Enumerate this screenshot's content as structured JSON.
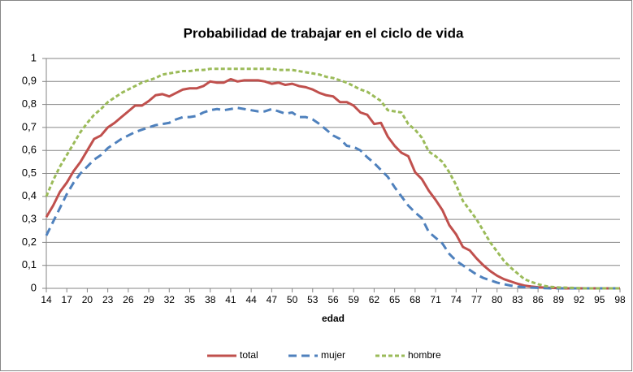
{
  "chart_data": {
    "type": "line",
    "title": "Probabilidad de trabajar en el ciclo de vida",
    "x_label": "edad",
    "x": [
      14,
      15,
      16,
      17,
      18,
      19,
      20,
      21,
      22,
      23,
      24,
      25,
      26,
      27,
      28,
      29,
      30,
      31,
      32,
      33,
      34,
      35,
      36,
      37,
      38,
      39,
      40,
      41,
      42,
      43,
      44,
      45,
      46,
      47,
      48,
      49,
      50,
      51,
      52,
      53,
      54,
      55,
      56,
      57,
      58,
      59,
      60,
      61,
      62,
      63,
      64,
      65,
      66,
      67,
      68,
      69,
      70,
      71,
      72,
      73,
      74,
      75,
      76,
      77,
      78,
      79,
      80,
      81,
      82,
      83,
      84,
      85,
      86,
      87,
      88,
      89,
      90,
      91,
      92,
      93,
      94,
      95,
      96,
      97,
      98
    ],
    "series": [
      {
        "name": "total",
        "color": "#c0504d",
        "dash": "solid",
        "values": [
          0.31,
          0.36,
          0.42,
          0.46,
          0.51,
          0.55,
          0.6,
          0.65,
          0.665,
          0.7,
          0.72,
          0.745,
          0.77,
          0.795,
          0.795,
          0.815,
          0.84,
          0.845,
          0.835,
          0.85,
          0.865,
          0.87,
          0.87,
          0.88,
          0.9,
          0.895,
          0.895,
          0.91,
          0.9,
          0.905,
          0.905,
          0.905,
          0.9,
          0.89,
          0.895,
          0.885,
          0.89,
          0.88,
          0.875,
          0.865,
          0.85,
          0.84,
          0.835,
          0.81,
          0.81,
          0.795,
          0.765,
          0.755,
          0.715,
          0.72,
          0.66,
          0.62,
          0.59,
          0.575,
          0.505,
          0.475,
          0.425,
          0.385,
          0.34,
          0.275,
          0.235,
          0.18,
          0.165,
          0.13,
          0.1,
          0.075,
          0.055,
          0.04,
          0.03,
          0.02,
          0.012,
          0.008,
          0.005,
          0.003,
          0.002,
          0.001,
          0,
          0,
          0,
          0,
          0,
          0,
          0,
          0,
          0
        ]
      },
      {
        "name": "mujer",
        "color": "#4f81bd",
        "dash": "long",
        "values": [
          0.23,
          0.29,
          0.35,
          0.41,
          0.46,
          0.5,
          0.53,
          0.56,
          0.58,
          0.61,
          0.63,
          0.65,
          0.665,
          0.68,
          0.69,
          0.7,
          0.71,
          0.715,
          0.72,
          0.735,
          0.745,
          0.745,
          0.75,
          0.765,
          0.775,
          0.78,
          0.775,
          0.78,
          0.785,
          0.78,
          0.775,
          0.77,
          0.77,
          0.78,
          0.77,
          0.76,
          0.765,
          0.745,
          0.745,
          0.735,
          0.715,
          0.69,
          0.665,
          0.65,
          0.62,
          0.615,
          0.6,
          0.57,
          0.545,
          0.515,
          0.485,
          0.44,
          0.4,
          0.36,
          0.33,
          0.305,
          0.245,
          0.22,
          0.195,
          0.15,
          0.12,
          0.1,
          0.08,
          0.06,
          0.045,
          0.035,
          0.025,
          0.018,
          0.012,
          0.008,
          0.005,
          0.003,
          0.002,
          0.001,
          0,
          0,
          0,
          0,
          0,
          0,
          0,
          0,
          0,
          0,
          0
        ]
      },
      {
        "name": "hombre",
        "color": "#9bbb59",
        "dash": "short",
        "values": [
          0.4,
          0.47,
          0.53,
          0.58,
          0.63,
          0.68,
          0.72,
          0.755,
          0.78,
          0.81,
          0.83,
          0.85,
          0.865,
          0.88,
          0.895,
          0.905,
          0.915,
          0.93,
          0.935,
          0.94,
          0.945,
          0.945,
          0.95,
          0.95,
          0.955,
          0.955,
          0.955,
          0.955,
          0.955,
          0.955,
          0.955,
          0.955,
          0.955,
          0.955,
          0.95,
          0.95,
          0.95,
          0.945,
          0.94,
          0.935,
          0.93,
          0.92,
          0.915,
          0.905,
          0.895,
          0.88,
          0.865,
          0.855,
          0.835,
          0.815,
          0.775,
          0.77,
          0.765,
          0.715,
          0.69,
          0.655,
          0.595,
          0.575,
          0.55,
          0.505,
          0.45,
          0.38,
          0.34,
          0.3,
          0.25,
          0.2,
          0.16,
          0.12,
          0.09,
          0.065,
          0.04,
          0.028,
          0.018,
          0.01,
          0.006,
          0.004,
          0.003,
          0.002,
          0.001,
          0,
          0,
          0,
          0,
          0,
          0
        ]
      }
    ],
    "xlim": [
      14,
      98
    ],
    "xticks": [
      14,
      17,
      20,
      23,
      26,
      29,
      32,
      35,
      38,
      41,
      44,
      47,
      50,
      53,
      56,
      59,
      62,
      65,
      68,
      71,
      74,
      77,
      80,
      83,
      86,
      89,
      92,
      95,
      98
    ],
    "ylim": [
      0,
      1
    ],
    "yticks": [
      0,
      {
        "value": 0.1,
        "label": "0,1"
      },
      {
        "value": 0.2,
        "label": "0,2"
      },
      {
        "value": 0.3,
        "label": "0,3"
      },
      {
        "value": 0.4,
        "label": "0,4"
      },
      {
        "value": 0.5,
        "label": "0,5"
      },
      {
        "value": 0.6,
        "label": "0,6"
      },
      {
        "value": 0.7,
        "label": "0,7"
      },
      {
        "value": 0.8,
        "label": "0,8"
      },
      {
        "value": 0.9,
        "label": "0,9"
      },
      1
    ],
    "grid": true,
    "legend": "bottom"
  }
}
